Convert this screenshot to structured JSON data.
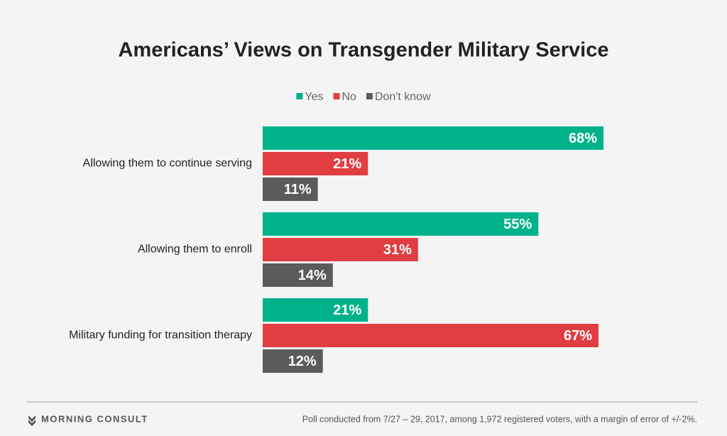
{
  "chart_data": {
    "type": "hbar",
    "title": "Americans’ Views on Transgender Military Service",
    "categories": [
      "Allowing them to continue serving",
      "Allowing them to enroll",
      "Military funding for transition therapy"
    ],
    "series": [
      {
        "name": "Yes",
        "color": "#00b28a",
        "values": [
          68,
          55,
          21
        ],
        "value_labels": [
          "68%",
          "55%",
          "21%"
        ]
      },
      {
        "name": "No",
        "color": "#e03e42",
        "values": [
          21,
          31,
          67
        ],
        "value_labels": [
          "21%",
          "31%",
          "67%"
        ]
      },
      {
        "name": "Don't know",
        "color": "#5b5b5b",
        "values": [
          11,
          14,
          12
        ],
        "value_labels": [
          "11%",
          "14%",
          "12%"
        ]
      }
    ],
    "logo": "MORNING CONSULT",
    "note": "Poll conducted from 7/27 – 29, 2017, among 1,972 registered voters, with a margin of error of +/-2%."
  }
}
